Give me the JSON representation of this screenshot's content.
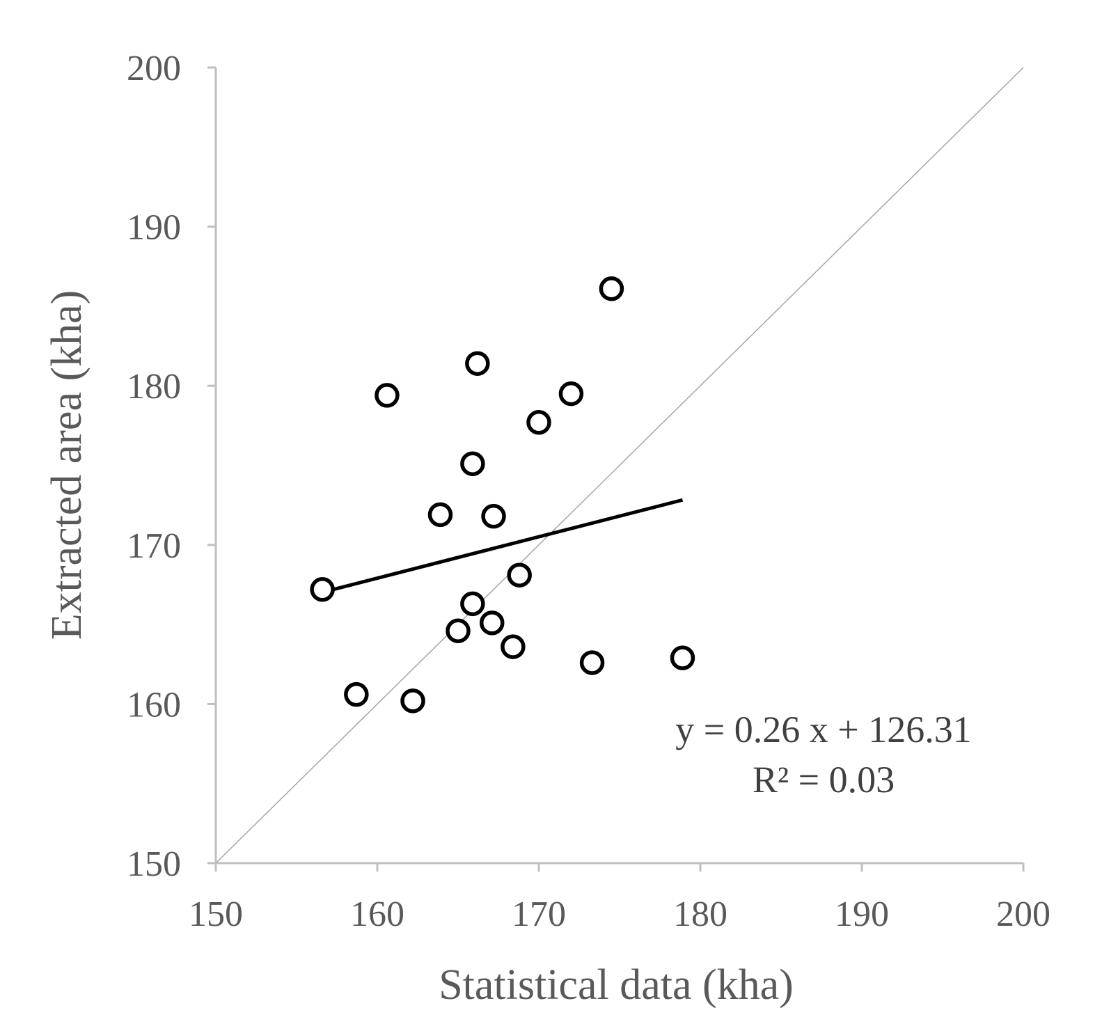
{
  "chart_data": {
    "type": "scatter",
    "xlabel": "Statistical data (kha)",
    "ylabel": "Extracted area (kha)",
    "xlim": [
      150,
      200
    ],
    "ylim": [
      150,
      200
    ],
    "xticks": [
      "150",
      "160",
      "170",
      "180",
      "190",
      "200"
    ],
    "yticks": [
      "150",
      "160",
      "170",
      "180",
      "190",
      "200"
    ],
    "grid": false,
    "reference_line": "1:1",
    "series": [
      {
        "marker": "open-circle",
        "points": [
          {
            "x": 156.6,
            "y": 167.2
          },
          {
            "x": 158.7,
            "y": 160.6
          },
          {
            "x": 160.6,
            "y": 179.4
          },
          {
            "x": 162.2,
            "y": 160.2
          },
          {
            "x": 163.9,
            "y": 171.9
          },
          {
            "x": 165.0,
            "y": 164.6
          },
          {
            "x": 165.9,
            "y": 166.3
          },
          {
            "x": 165.9,
            "y": 175.1
          },
          {
            "x": 166.2,
            "y": 181.4
          },
          {
            "x": 167.1,
            "y": 165.1
          },
          {
            "x": 167.2,
            "y": 171.8
          },
          {
            "x": 168.4,
            "y": 163.6
          },
          {
            "x": 168.8,
            "y": 168.1
          },
          {
            "x": 170.0,
            "y": 177.7
          },
          {
            "x": 172.0,
            "y": 179.5
          },
          {
            "x": 173.3,
            "y": 162.6
          },
          {
            "x": 174.5,
            "y": 186.1
          },
          {
            "x": 178.9,
            "y": 162.9
          }
        ]
      }
    ],
    "trendline": {
      "slope": 0.26,
      "intercept": 126.31,
      "x_range": [
        156.6,
        178.9
      ]
    },
    "annotations": {
      "equation": "y = 0.26 x + 126.31",
      "r_squared": "R² = 0.03"
    },
    "colors": {
      "axis": "#bfbfbf",
      "marker": "#000000",
      "trendline": "#000000",
      "reference_line": "#a6a6a6",
      "text": "#595959"
    }
  }
}
